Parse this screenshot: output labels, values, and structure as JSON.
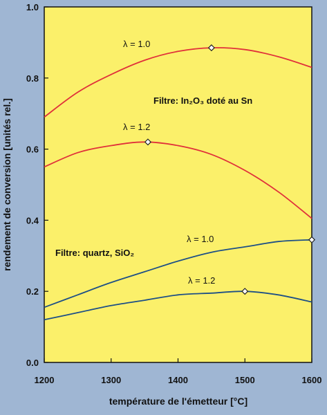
{
  "colors": {
    "page_background": "#9fb6d3",
    "plot_background": "#fbf06a",
    "red_series": "#e0303a",
    "blue_series": "#1d4f86"
  },
  "chart_data": {
    "type": "line",
    "xlabel": "température de l'émetteur [°C]",
    "ylabel": "rendement de conversion [unités rel.]",
    "xlim": [
      1200,
      1600
    ],
    "ylim": [
      0.0,
      1.0
    ],
    "x_ticks": [
      1200,
      1300,
      1400,
      1500,
      1600
    ],
    "y_ticks": [
      0.0,
      0.2,
      0.4,
      0.6,
      0.8,
      1.0
    ],
    "x_tick_labels": [
      "1200",
      "1300",
      "1400",
      "1500",
      "1600"
    ],
    "y_tick_labels": [
      "0.0",
      "0.2",
      "0.4",
      "0.6",
      "0.8",
      "1.0"
    ],
    "grid": false,
    "legend": "none",
    "annotations": {
      "filter_ito": "Filtre: In₂O₃ doté au Sn",
      "filter_quartz": "Filtre: quartz, SiO₂"
    },
    "series": [
      {
        "label": "λ = 1.0",
        "group": "ito",
        "color": "#e0303a",
        "x": [
          1200,
          1250,
          1300,
          1350,
          1400,
          1450,
          1500,
          1550,
          1600
        ],
        "y": [
          0.69,
          0.76,
          0.81,
          0.85,
          0.875,
          0.885,
          0.88,
          0.86,
          0.83
        ],
        "marker": {
          "x": 1450,
          "y": 0.885
        }
      },
      {
        "label": "λ = 1.2",
        "group": "ito",
        "color": "#e0303a",
        "x": [
          1200,
          1250,
          1300,
          1350,
          1400,
          1450,
          1500,
          1550,
          1600
        ],
        "y": [
          0.55,
          0.59,
          0.61,
          0.62,
          0.61,
          0.585,
          0.54,
          0.48,
          0.405
        ],
        "marker": {
          "x": 1355,
          "y": 0.62
        }
      },
      {
        "label": "λ = 1.0",
        "group": "quartz",
        "color": "#1d4f86",
        "x": [
          1200,
          1250,
          1300,
          1350,
          1400,
          1450,
          1500,
          1550,
          1600
        ],
        "y": [
          0.155,
          0.19,
          0.225,
          0.255,
          0.285,
          0.31,
          0.325,
          0.34,
          0.345
        ],
        "marker": {
          "x": 1600,
          "y": 0.345
        }
      },
      {
        "label": "λ = 1.2",
        "group": "quartz",
        "color": "#1d4f86",
        "x": [
          1200,
          1250,
          1300,
          1350,
          1400,
          1450,
          1500,
          1550,
          1600
        ],
        "y": [
          0.12,
          0.14,
          0.16,
          0.175,
          0.19,
          0.195,
          0.2,
          0.19,
          0.17
        ],
        "marker": {
          "x": 1500,
          "y": 0.2
        }
      }
    ]
  }
}
